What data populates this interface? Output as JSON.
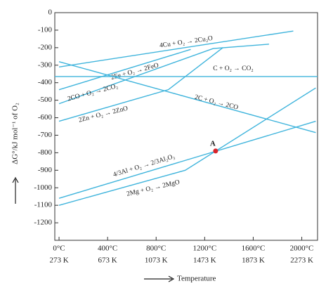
{
  "chart_data": {
    "type": "line",
    "y_label": "ΔG°/kJ mol⁻¹ of O₂",
    "x_label": "Temperature",
    "xlim": [
      -35,
      2130
    ],
    "ylim": [
      -1300,
      0
    ],
    "xticks": [
      {
        "value": 0,
        "label": "0°C"
      },
      {
        "value": 400,
        "label": "400°C"
      },
      {
        "value": 800,
        "label": "800°C"
      },
      {
        "value": 1200,
        "label": "1200°C"
      },
      {
        "value": 1600,
        "label": "1600°C"
      },
      {
        "value": 2000,
        "label": "2000°C"
      }
    ],
    "xticks_kelvin": [
      "273 K",
      "673 K",
      "1073 K",
      "1473 K",
      "1873 K",
      "2273 K"
    ],
    "yticks": [
      0,
      -100,
      -200,
      -300,
      -400,
      -500,
      -600,
      -700,
      -800,
      -900,
      -1000,
      -1100,
      -1200
    ],
    "color": "#3fb4dc",
    "series": [
      {
        "name": "4Cu + O₂ → 2Cu₂O",
        "x": [
          0,
          1930
        ],
        "values": [
          -310,
          -105
        ]
      },
      {
        "name": "2Fe + O₂ → 2FeO",
        "x": [
          0,
          1085
        ],
        "values": [
          -440,
          -210
        ]
      },
      {
        "name": "C + O₂ → CO₂",
        "x": [
          -35,
          2130
        ],
        "values": [
          -365,
          -365
        ]
      },
      {
        "name": "2CO + O₂ → 2CO₂",
        "x": [
          0,
          1270,
          1730
        ],
        "values": [
          -520,
          -205,
          -180
        ]
      },
      {
        "name": "2C + O₂ → 2CO",
        "x": [
          0,
          2115
        ],
        "values": [
          -280,
          -685
        ]
      },
      {
        "name": "2Zn + O₂ → 2ZnO",
        "x": [
          0,
          900,
          1350
        ],
        "values": [
          -620,
          -440,
          -200
        ]
      },
      {
        "name": "4/3Al + O₂ → 2/3Al₂O₃",
        "x": [
          0,
          2115
        ],
        "values": [
          -1060,
          -620
        ]
      },
      {
        "name": "2Mg + O₂ → 2MgO",
        "x": [
          0,
          1040,
          2115
        ],
        "values": [
          -1100,
          -900,
          -430
        ]
      }
    ],
    "point": {
      "label": "A",
      "x": 1290,
      "y": -790,
      "color": "#d9232a"
    }
  }
}
